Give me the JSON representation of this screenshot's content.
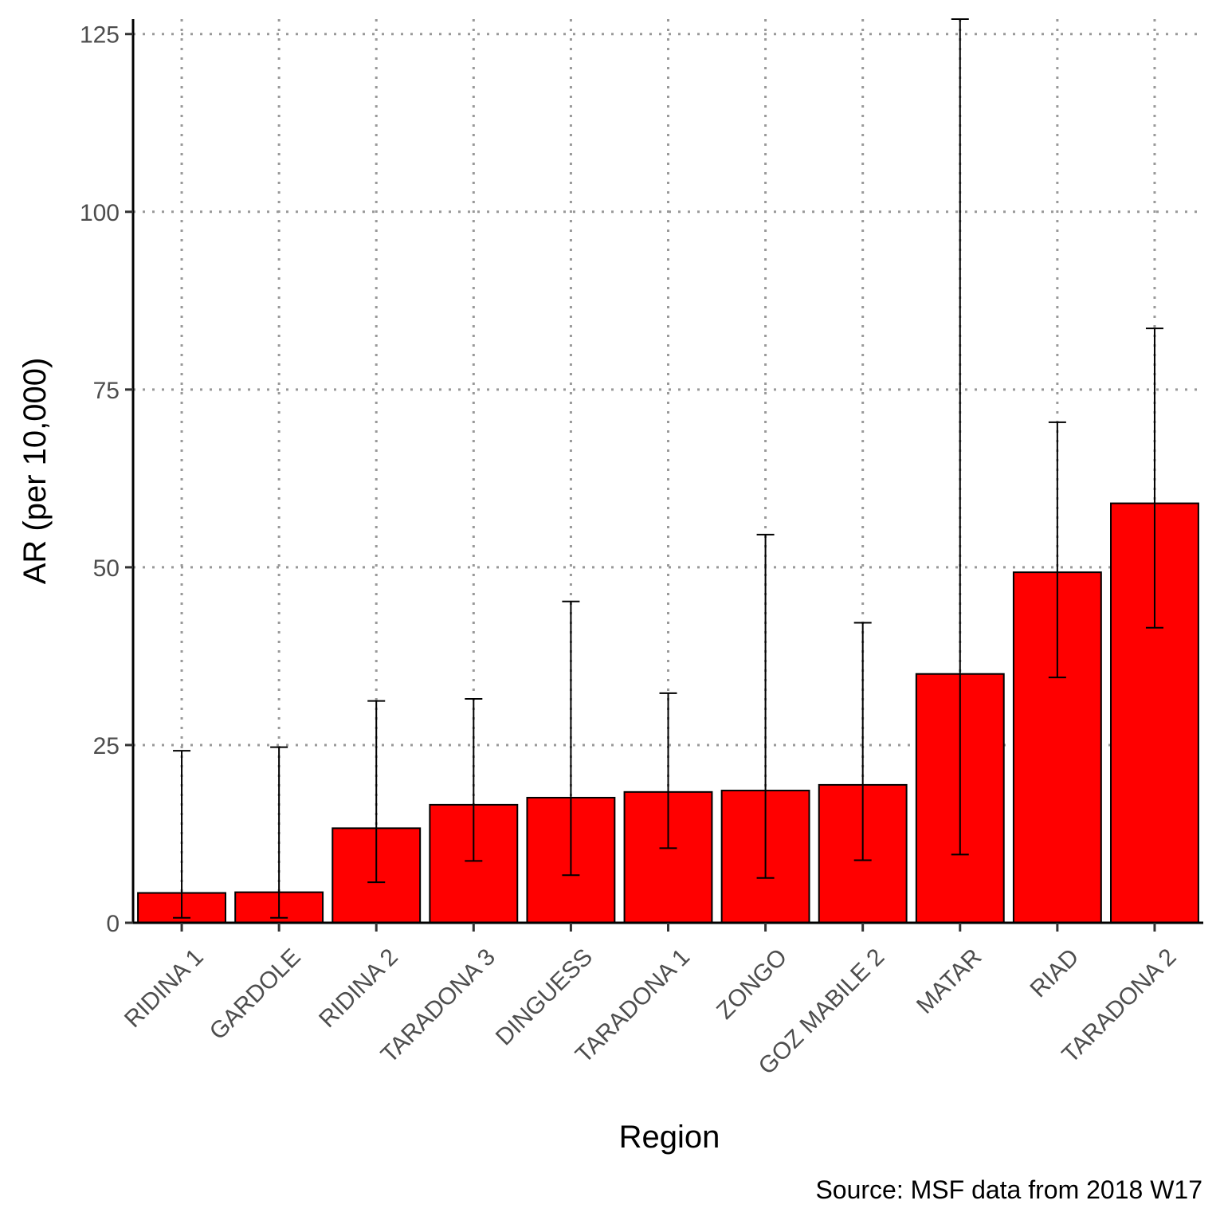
{
  "chart_data": {
    "type": "bar",
    "title": "",
    "xlabel": "Region",
    "ylabel": "AR (per 10,000)",
    "caption": "Source: MSF data from 2018 W17",
    "categories": [
      "RIDINA 1",
      "GARDOLE",
      "RIDINA 2",
      "TARADONA 3",
      "DINGUESS",
      "TARADONA 1",
      "ZONGO",
      "GOZ MABILE 2",
      "MATAR",
      "RIAD",
      "TARADONA 2"
    ],
    "values": [
      4.2,
      4.3,
      13.3,
      16.6,
      17.6,
      18.4,
      18.6,
      19.4,
      35.0,
      49.3,
      59.0
    ],
    "error_low": [
      0.7,
      0.7,
      5.7,
      8.7,
      6.7,
      10.5,
      6.3,
      8.8,
      9.6,
      34.5,
      41.5
    ],
    "error_high": [
      24.2,
      24.7,
      31.2,
      31.5,
      45.2,
      32.3,
      54.6,
      42.2,
      127.1,
      70.4,
      83.6
    ],
    "ylim": [
      0,
      127.1
    ],
    "yticks": [
      0,
      25,
      50,
      75,
      100,
      125
    ],
    "grid": true,
    "legend": "none",
    "bar_color": "#ff0000",
    "bar_outline": "#000000",
    "grid_color": "#999999"
  }
}
